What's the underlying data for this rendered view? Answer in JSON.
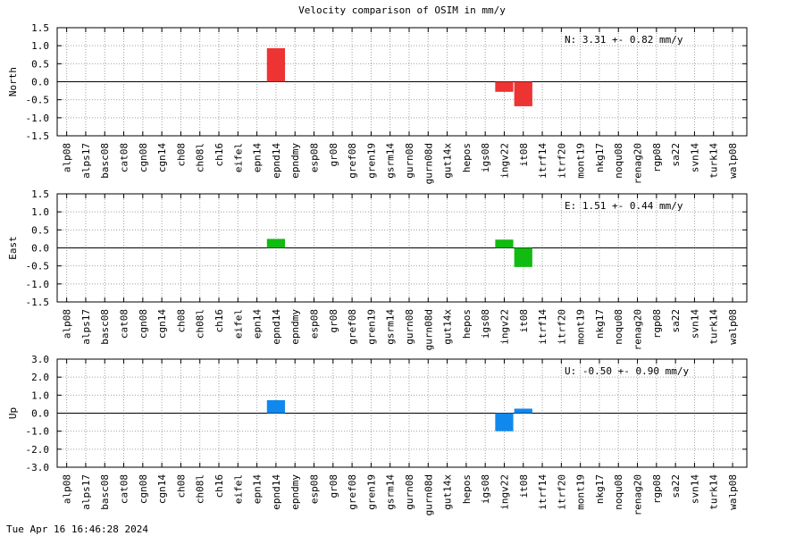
{
  "title": "Velocity comparison of OSIM in mm/y",
  "timestamp": "Tue Apr 16 16:46:28 2024",
  "chart_data": [
    {
      "type": "bar",
      "ylabel": "North",
      "ylim": [
        -1.5,
        1.5
      ],
      "yticks": [
        "1.5",
        "1.0",
        "0.5",
        "0.0",
        "-0.5",
        "-1.0",
        "-1.5"
      ],
      "ytick_values": [
        1.5,
        1.0,
        0.5,
        0.0,
        -0.5,
        -1.0,
        -1.5
      ],
      "annotation": "N:   3.31 +-  0.82 mm/y",
      "color": "#ee3333",
      "grid": true,
      "categories": [
        "alp08",
        "alps17",
        "basc08",
        "cat08",
        "cgn08",
        "cgn14",
        "ch08",
        "ch08l",
        "ch16",
        "eifel",
        "epn14",
        "epnd14",
        "epndmy",
        "esp08",
        "gr08",
        "gref08",
        "gren19",
        "gsrm14",
        "gurn08",
        "gurn08d",
        "gut14x",
        "hepos",
        "igs08",
        "ingv22",
        "it08",
        "itrf14",
        "itrf20",
        "mont19",
        "nkg17",
        "noqu08",
        "renag20",
        "rgp08",
        "sa22",
        "svn14",
        "turk14",
        "walp08"
      ],
      "values": [
        0,
        0,
        0,
        0,
        0,
        0,
        0,
        0,
        0,
        0,
        0,
        0.93,
        0,
        0,
        0,
        0,
        0,
        0,
        0,
        0,
        0,
        0,
        0,
        -0.28,
        -0.68,
        0,
        0,
        0,
        0,
        0,
        0,
        0,
        0,
        0,
        0,
        0
      ]
    },
    {
      "type": "bar",
      "ylabel": "East",
      "ylim": [
        -1.5,
        1.5
      ],
      "yticks": [
        "1.5",
        "1.0",
        "0.5",
        "0.0",
        "-0.5",
        "-1.0",
        "-1.5"
      ],
      "ytick_values": [
        1.5,
        1.0,
        0.5,
        0.0,
        -0.5,
        -1.0,
        -1.5
      ],
      "annotation": "E:   1.51 +-  0.44 mm/y",
      "color": "#11bb11",
      "grid": true,
      "categories": [
        "alp08",
        "alps17",
        "basc08",
        "cat08",
        "cgn08",
        "cgn14",
        "ch08",
        "ch08l",
        "ch16",
        "eifel",
        "epn14",
        "epnd14",
        "epndmy",
        "esp08",
        "gr08",
        "gref08",
        "gren19",
        "gsrm14",
        "gurn08",
        "gurn08d",
        "gut14x",
        "hepos",
        "igs08",
        "ingv22",
        "it08",
        "itrf14",
        "itrf20",
        "mont19",
        "nkg17",
        "noqu08",
        "renag20",
        "rgp08",
        "sa22",
        "svn14",
        "turk14",
        "walp08"
      ],
      "values": [
        0,
        0,
        0,
        0,
        0,
        0,
        0,
        0,
        0,
        0,
        0,
        0.25,
        0,
        0,
        0,
        0,
        0,
        0,
        0,
        0,
        0,
        0,
        0,
        0.23,
        -0.53,
        0,
        0,
        0,
        0,
        0,
        0,
        0,
        0,
        0,
        0,
        0
      ]
    },
    {
      "type": "bar",
      "ylabel": "Up",
      "ylim": [
        -3.0,
        3.0
      ],
      "yticks": [
        "3.0",
        "2.0",
        "1.0",
        "0.0",
        "-1.0",
        "-2.0",
        "-3.0"
      ],
      "ytick_values": [
        3.0,
        2.0,
        1.0,
        0.0,
        -1.0,
        -2.0,
        -3.0
      ],
      "annotation": "U:  -0.50 +-  0.90 mm/y",
      "color": "#1188ee",
      "grid": true,
      "categories": [
        "alp08",
        "alps17",
        "basc08",
        "cat08",
        "cgn08",
        "cgn14",
        "ch08",
        "ch08l",
        "ch16",
        "eifel",
        "epn14",
        "epnd14",
        "epndmy",
        "esp08",
        "gr08",
        "gref08",
        "gren19",
        "gsrm14",
        "gurn08",
        "gurn08d",
        "gut14x",
        "hepos",
        "igs08",
        "ingv22",
        "it08",
        "itrf14",
        "itrf20",
        "mont19",
        "nkg17",
        "noqu08",
        "renag20",
        "rgp08",
        "sa22",
        "svn14",
        "turk14",
        "walp08"
      ],
      "values": [
        0,
        0,
        0,
        0,
        0,
        0,
        0,
        0,
        0,
        0,
        0,
        0.72,
        0,
        0,
        0,
        0,
        0,
        0,
        0,
        0,
        0,
        0,
        0,
        -1.0,
        0.25,
        0,
        0,
        0,
        0,
        0,
        0,
        0,
        0,
        0,
        0,
        0
      ]
    }
  ]
}
